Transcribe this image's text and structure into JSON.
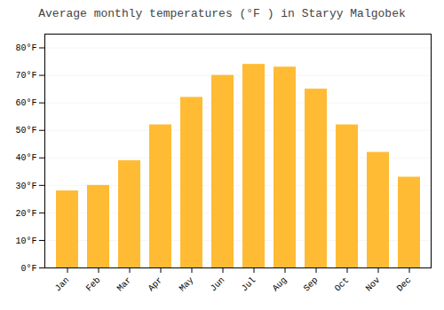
{
  "chart_data": {
    "type": "bar",
    "title": "Average monthly temperatures (°F ) in Staryy Malgobek",
    "categories": [
      "Jan",
      "Feb",
      "Mar",
      "Apr",
      "May",
      "Jun",
      "Jul",
      "Aug",
      "Sep",
      "Oct",
      "Nov",
      "Dec"
    ],
    "values": [
      28,
      30,
      39,
      52,
      62,
      70,
      74,
      73,
      65,
      52,
      42,
      33
    ],
    "color": "#FFBB33",
    "ylim": [
      0,
      85
    ],
    "yticks": [
      {
        "value": 0,
        "label": "0°F"
      },
      {
        "value": 10,
        "label": "10°F"
      },
      {
        "value": 20,
        "label": "20°F"
      },
      {
        "value": 30,
        "label": "30°F"
      },
      {
        "value": 40,
        "label": "40°F"
      },
      {
        "value": 50,
        "label": "50°F"
      },
      {
        "value": 60,
        "label": "60°F"
      },
      {
        "value": 70,
        "label": "70°F"
      },
      {
        "value": 80,
        "label": "80°F"
      }
    ],
    "grid": true
  }
}
